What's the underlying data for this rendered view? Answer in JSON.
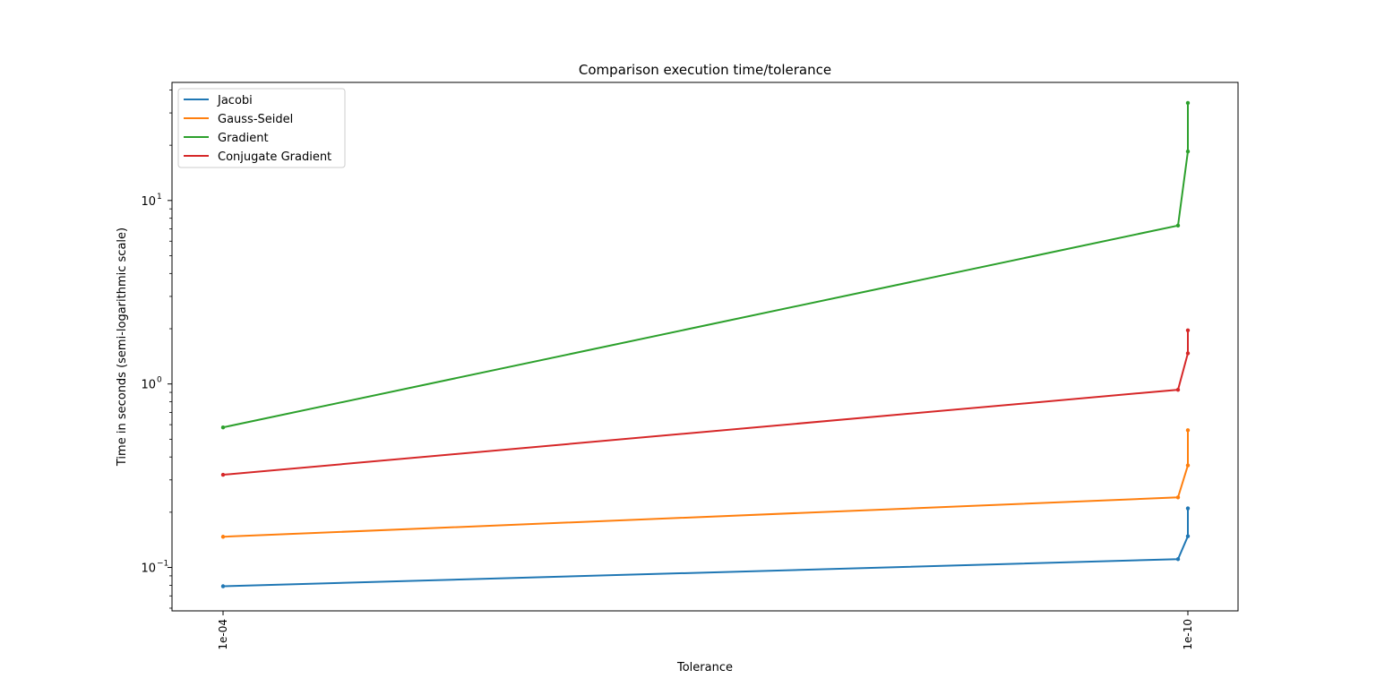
{
  "chart_data": {
    "type": "line",
    "title": "Comparison execution time/tolerance",
    "xlabel": "Tolerance",
    "ylabel": "Time in seconds (semi-logarithmic scale)",
    "yscale": "log",
    "ylim": [
      0.058,
      44
    ],
    "x_ticks": [
      "1e-04",
      "1e-10"
    ],
    "y_ticks": [
      {
        "value": 0.1,
        "base": "10",
        "exp": "−1"
      },
      {
        "value": 1,
        "base": "10",
        "exp": "0"
      },
      {
        "value": 10,
        "base": "10",
        "exp": "1"
      }
    ],
    "grid": false,
    "legend_position": "upper left",
    "x": [
      0.0001,
      1e-09,
      1e-10,
      1e-10
    ],
    "series": [
      {
        "name": "Jacobi",
        "color": "#1f77b4",
        "values": [
          0.079,
          0.111,
          0.148,
          0.21
        ]
      },
      {
        "name": "Gauss-Seidel",
        "color": "#ff7f0e",
        "values": [
          0.147,
          0.241,
          0.36,
          0.56
        ]
      },
      {
        "name": "Gradient",
        "color": "#2ca02c",
        "values": [
          0.58,
          7.3,
          18.5,
          34
        ]
      },
      {
        "name": "Conjugate Gradient",
        "color": "#d62728",
        "values": [
          0.32,
          0.93,
          1.47,
          1.96
        ]
      }
    ]
  }
}
